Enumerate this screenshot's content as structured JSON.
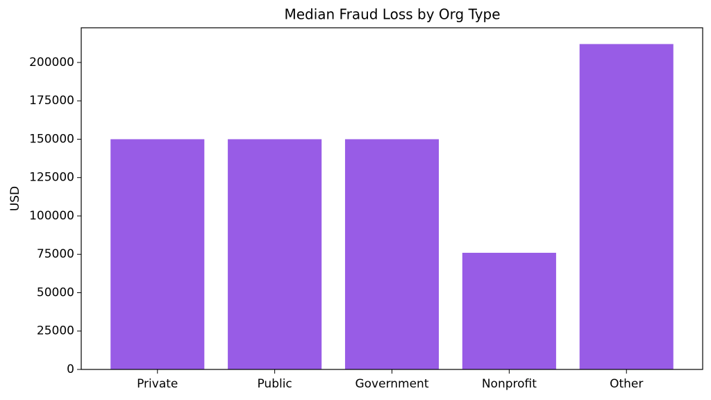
{
  "chart_data": {
    "type": "bar",
    "title": "Median Fraud Loss by Org Type",
    "y_label": "USD",
    "categories": [
      "Private",
      "Public",
      "Government",
      "Nonprofit",
      "Other"
    ],
    "values": [
      150000,
      150000,
      150000,
      76000,
      212000
    ],
    "color": "#985ce6",
    "ylim": [
      0,
      222600
    ],
    "yticks": [
      0,
      25000,
      50000,
      75000,
      100000,
      125000,
      150000,
      175000,
      200000
    ],
    "grid": false
  }
}
